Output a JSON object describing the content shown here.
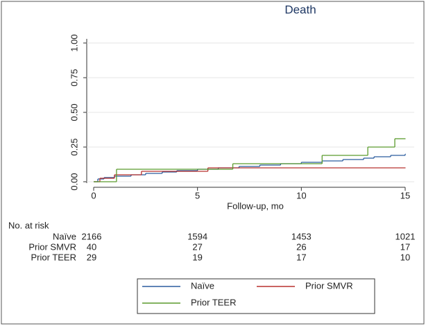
{
  "chart_data": {
    "type": "step",
    "title": "Death",
    "x_label": "Follow-up, mo",
    "xlim": [
      0,
      15
    ],
    "xticks": [
      0,
      5,
      10,
      15
    ],
    "ylim": [
      0,
      1
    ],
    "yticks": [
      {
        "value": 0,
        "label": "0.00"
      },
      {
        "value": 0.25,
        "label": "0.25"
      },
      {
        "value": 0.5,
        "label": "0.50"
      },
      {
        "value": 0.75,
        "label": "0.75"
      },
      {
        "value": 1,
        "label": "1.00"
      }
    ],
    "grid": true,
    "series": [
      {
        "name": "Naïve",
        "color": "#2b5c9e",
        "x": [
          0,
          0.2,
          0.5,
          1,
          1.8,
          2.5,
          3.3,
          4,
          5,
          6,
          7,
          8,
          9,
          10,
          11,
          12,
          13,
          13.5,
          14.3,
          15
        ],
        "values": [
          0,
          0.02,
          0.03,
          0.04,
          0.05,
          0.06,
          0.07,
          0.08,
          0.09,
          0.1,
          0.11,
          0.12,
          0.13,
          0.14,
          0.15,
          0.16,
          0.17,
          0.18,
          0.19,
          0.2
        ]
      },
      {
        "name": "Prior SMVR",
        "color": "#b8302f",
        "x": [
          0,
          0.3,
          1,
          2.3,
          5.5,
          15
        ],
        "values": [
          0,
          0.025,
          0.05,
          0.075,
          0.1,
          0.1
        ]
      },
      {
        "name": "Prior TEER",
        "color": "#5a9a2c",
        "x": [
          0,
          1.1,
          6.7,
          11,
          13.2,
          14.5,
          15
        ],
        "values": [
          0,
          0.09,
          0.13,
          0.19,
          0.25,
          0.31,
          0.31
        ]
      }
    ],
    "risk_table": {
      "label": "No. at risk",
      "rows": [
        {
          "name": "Naïve",
          "counts": [
            2166,
            1594,
            1453,
            1021
          ]
        },
        {
          "name": "Prior SMVR",
          "counts": [
            40,
            27,
            26,
            17
          ]
        },
        {
          "name": "Prior TEER",
          "counts": [
            29,
            19,
            17,
            10
          ]
        }
      ]
    }
  }
}
